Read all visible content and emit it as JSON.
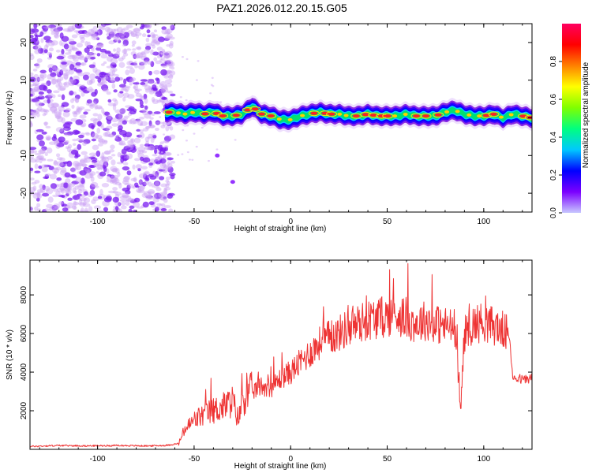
{
  "page": {
    "title": "PAZ1.2026.012.20.15.G05"
  },
  "colors": {
    "axis": "#000000",
    "snr_line": "#ee3333",
    "noise_cloud": "#8a2be2",
    "colormap": [
      "#c8c8ff",
      "#7b00ff",
      "#0000ff",
      "#00c8ff",
      "#00ff80",
      "#80ff00",
      "#ffff00",
      "#ff8000",
      "#ff0000",
      "#ff0060"
    ]
  },
  "chart_data": [
    {
      "type": "heatmap",
      "title": "PAZ1.2026.012.20.15.G05",
      "xlabel": "Height of straight line (km)",
      "ylabel": "Frequency (Hz)",
      "xlim": [
        -135,
        125
      ],
      "ylim": [
        -25,
        25
      ],
      "xticks": [
        -100,
        -50,
        0,
        50,
        100
      ],
      "yticks": [
        -20,
        -10,
        0,
        10,
        20
      ],
      "grid": false,
      "noise_region_x": [
        -135,
        -65
      ],
      "ridge": {
        "x": [
          -65,
          -60,
          -55,
          -50,
          -45,
          -40,
          -35,
          -30,
          -25,
          -20,
          -15,
          -10,
          -5,
          0,
          5,
          10,
          15,
          20,
          25,
          30,
          35,
          40,
          45,
          50,
          55,
          60,
          65,
          70,
          75,
          80,
          85,
          90,
          95,
          100,
          105,
          110,
          115,
          120,
          125
        ],
        "y": [
          1.5,
          1.5,
          1.0,
          1.5,
          1.0,
          1.5,
          0.5,
          0.5,
          1.0,
          3.0,
          1.0,
          0.5,
          -0.5,
          -0.5,
          0.5,
          1.0,
          1.5,
          1.0,
          1.0,
          0.5,
          0.5,
          1.0,
          0.5,
          0.5,
          0.5,
          1.0,
          0.5,
          0.5,
          0.5,
          1.5,
          2.0,
          1.0,
          0.5,
          0.5,
          1.0,
          0.0,
          1.0,
          0.5,
          0.0
        ]
      },
      "outlier_points": [
        {
          "x": -30,
          "y": -17
        },
        {
          "x": -38,
          "y": -10
        }
      ],
      "colorbar": {
        "label": "Normalized spectral amplitude",
        "range": [
          0.0,
          1.0
        ],
        "ticks": [
          0.0,
          0.2,
          0.4,
          0.6,
          0.8
        ],
        "tick_labels": [
          "0.0",
          "0.2",
          "0.4",
          "0.6",
          "0.8"
        ]
      }
    },
    {
      "type": "line",
      "xlabel": "Height of straight line (km)",
      "ylabel": "SNR (10 * v/v)",
      "xlim": [
        -135,
        125
      ],
      "ylim": [
        0,
        9800
      ],
      "xticks": [
        -100,
        -50,
        0,
        50,
        100
      ],
      "yticks": [
        2000,
        4000,
        6000,
        8000
      ],
      "grid": false,
      "series": [
        {
          "x": [
            -135,
            -120,
            -105,
            -90,
            -75,
            -65,
            -58,
            -55,
            -50,
            -45,
            -40,
            -35,
            -30,
            -27,
            -25,
            -20,
            -15,
            -10,
            -5,
            0,
            5,
            10,
            15,
            20,
            25,
            30,
            35,
            40,
            45,
            50,
            55,
            60,
            65,
            70,
            75,
            80,
            85,
            88,
            90,
            95,
            100,
            105,
            110,
            113,
            115,
            120,
            125
          ],
          "y": [
            150,
            200,
            180,
            200,
            180,
            200,
            300,
            1000,
            1500,
            1800,
            2000,
            2200,
            2500,
            1500,
            2600,
            3000,
            3300,
            3200,
            3700,
            4000,
            4500,
            5000,
            5500,
            5800,
            6000,
            6300,
            6500,
            6700,
            6800,
            6900,
            7000,
            6800,
            6500,
            6700,
            6500,
            6400,
            6300,
            2000,
            6000,
            6500,
            6600,
            6400,
            6200,
            6000,
            3800,
            3600,
            3700
          ]
        }
      ]
    }
  ]
}
